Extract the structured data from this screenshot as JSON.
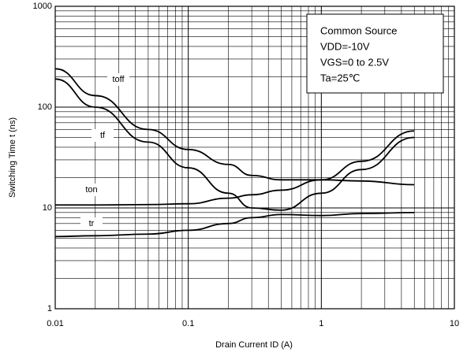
{
  "chart_data": {
    "type": "line",
    "x_label": "Drain Current  ID (A)",
    "y_label": "Switching Time  t (ns)",
    "x": [
      0.01,
      0.02,
      0.05,
      0.1,
      0.2,
      0.3,
      0.5,
      1,
      2,
      5
    ],
    "series": [
      {
        "name": "toff",
        "color": "#000000",
        "values": [
          240,
          130,
          60,
          38,
          27,
          21,
          19,
          19,
          18.5,
          17
        ]
      },
      {
        "name": "tf",
        "color": "#000000",
        "values": [
          190,
          100,
          45,
          25,
          14,
          10,
          9.5,
          14,
          24,
          50
        ]
      },
      {
        "name": "ton",
        "color": "#000000",
        "values": [
          10.7,
          10.7,
          10.8,
          11,
          12.5,
          13.5,
          15,
          19,
          29,
          58
        ]
      },
      {
        "name": "tr",
        "color": "#000000",
        "values": [
          5.2,
          5.3,
          5.5,
          6,
          7,
          8,
          8.6,
          8.4,
          8.8,
          9
        ]
      }
    ],
    "xscale": "log",
    "yscale": "log",
    "xlim": [
      0.01,
      10
    ],
    "ylim": [
      1,
      1000
    ],
    "xticks": [
      0.01,
      0.1,
      1,
      10
    ],
    "yticks": [
      1,
      10,
      100,
      1000
    ],
    "grid": true,
    "annotations": [
      "Common Source",
      "VDD=-10V",
      "VGS=0 to 2.5V",
      "Ta=25℃"
    ]
  }
}
